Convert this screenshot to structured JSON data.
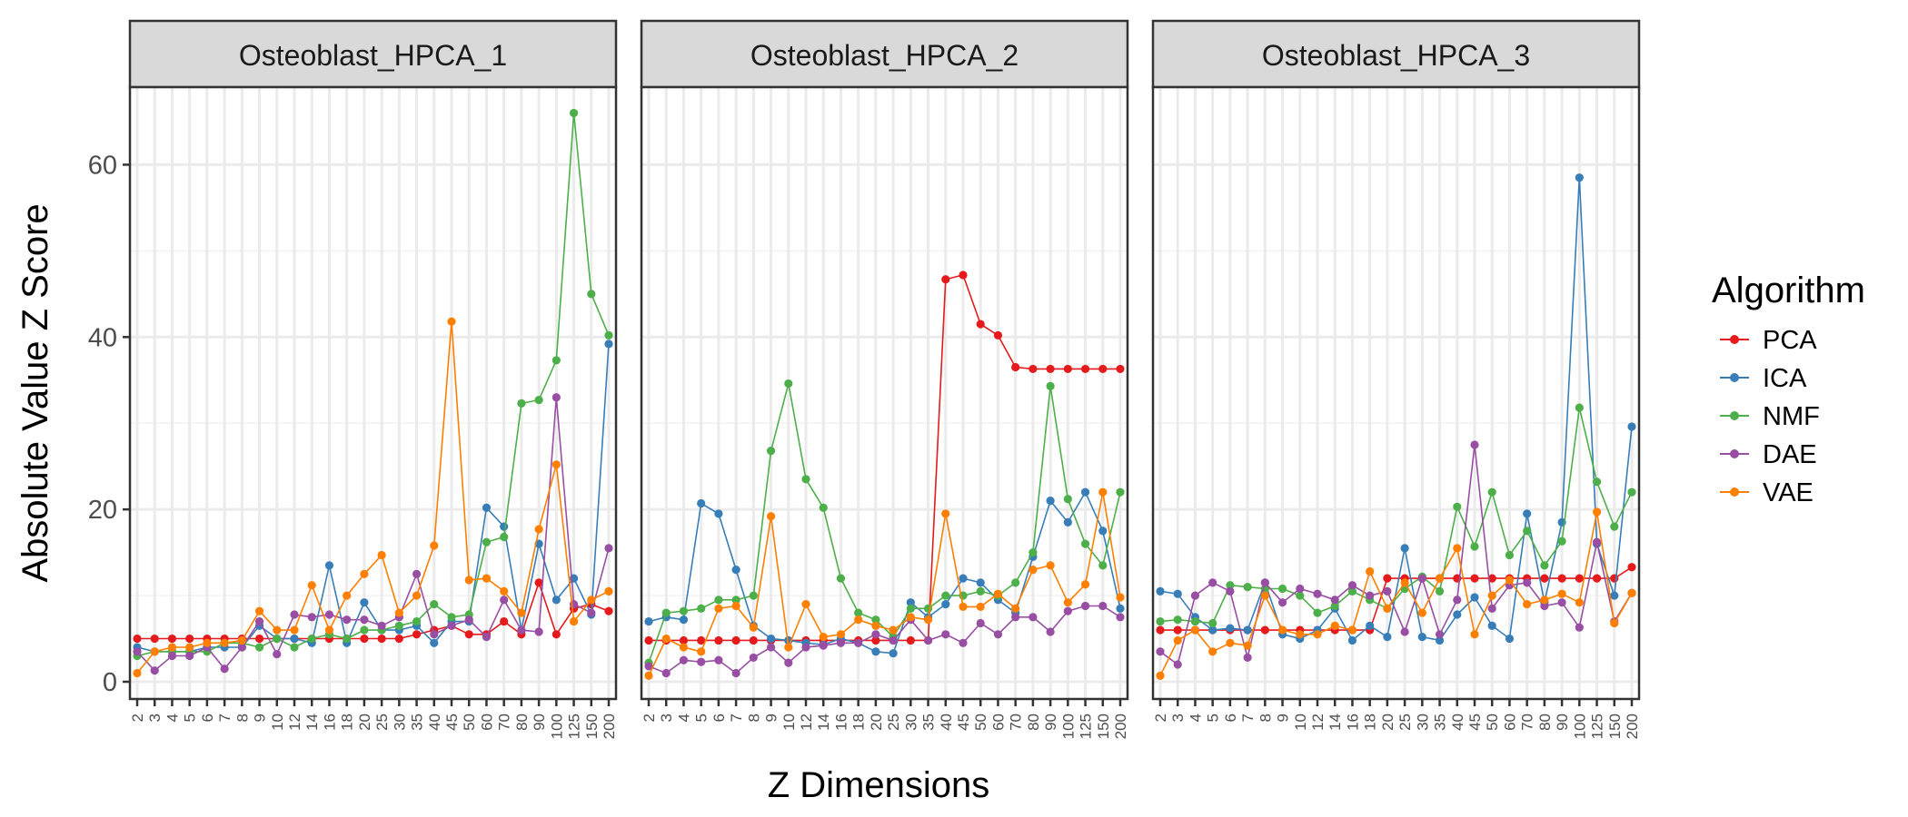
{
  "chart_data": {
    "type": "line",
    "ylabel": "Absolute Value Z Score",
    "xlabel": "Z Dimensions",
    "ylim": [
      -2,
      69
    ],
    "yticks": [
      0,
      20,
      40,
      60
    ],
    "legend": {
      "title": "Algorithm",
      "placement": "right"
    },
    "categories": [
      "2",
      "3",
      "4",
      "5",
      "6",
      "7",
      "8",
      "9",
      "10",
      "12",
      "14",
      "16",
      "18",
      "20",
      "25",
      "30",
      "35",
      "40",
      "45",
      "50",
      "60",
      "70",
      "80",
      "90",
      "100",
      "125",
      "150",
      "200"
    ],
    "colors": {
      "PCA": "#e41a1c",
      "ICA": "#377eb8",
      "NMF": "#4daf4a",
      "DAE": "#984ea3",
      "VAE": "#ff7f00"
    },
    "panels": [
      {
        "title": "Osteoblast_HPCA_1",
        "series": [
          {
            "name": "PCA",
            "values": [
              5,
              5,
              5,
              5,
              5,
              5,
              5,
              5,
              5,
              5,
              5,
              5,
              5,
              5,
              5,
              5,
              5.5,
              6,
              6.5,
              5.5,
              5.5,
              7,
              5.5,
              11.5,
              5.5,
              8.5,
              9,
              8.2
            ]
          },
          {
            "name": "ICA",
            "values": [
              4,
              3.5,
              3.5,
              3.5,
              4,
              4,
              4,
              6.5,
              5,
              5,
              4.5,
              13.5,
              4.5,
              9.2,
              6,
              6,
              6.5,
              4.5,
              7,
              7,
              20.2,
              18,
              6,
              16,
              9.5,
              12,
              7.8,
              39.2
            ]
          },
          {
            "name": "NMF",
            "values": [
              3,
              3.5,
              3.5,
              3.5,
              3.5,
              4.5,
              4.5,
              4,
              5,
              4,
              5,
              5.5,
              5,
              6,
              6,
              6.5,
              7,
              9,
              7.5,
              7.8,
              16.2,
              16.8,
              32.3,
              32.7,
              37.3,
              66,
              45,
              40.2
            ]
          },
          {
            "name": "DAE",
            "values": [
              3.5,
              1.3,
              3,
              3,
              4,
              1.5,
              4,
              7,
              3.2,
              7.8,
              7.5,
              7.8,
              7.2,
              7.2,
              6.5,
              7.5,
              12.5,
              5.5,
              6.5,
              7.2,
              5.2,
              9.5,
              6,
              5.8,
              33,
              9,
              8,
              15.5
            ]
          },
          {
            "name": "VAE",
            "values": [
              1,
              3.5,
              4,
              4,
              4.5,
              4.5,
              4.8,
              8.2,
              6,
              6,
              11.2,
              6,
              10,
              12.5,
              14.7,
              8,
              10,
              15.8,
              41.8,
              11.8,
              12,
              10.5,
              8,
              17.7,
              25.2,
              7,
              9.5,
              10.5
            ]
          }
        ]
      },
      {
        "title": "Osteoblast_HPCA_2",
        "series": [
          {
            "name": "PCA",
            "values": [
              4.8,
              4.8,
              4.8,
              4.8,
              4.8,
              4.8,
              4.8,
              4.8,
              4.8,
              4.8,
              4.8,
              4.8,
              4.8,
              4.8,
              4.8,
              4.8,
              4.8,
              46.7,
              47.2,
              41.5,
              40.2,
              36.5,
              36.3,
              36.3,
              36.3,
              36.3,
              36.3,
              36.3
            ]
          },
          {
            "name": "ICA",
            "values": [
              7,
              7.5,
              7.2,
              20.7,
              19.5,
              13,
              6.5,
              5,
              4.8,
              4.5,
              4.3,
              5,
              4.5,
              3.5,
              3.3,
              9.2,
              7.5,
              9,
              12,
              11.5,
              9.5,
              8,
              14.5,
              21,
              18.5,
              22,
              17.5,
              8.5
            ]
          },
          {
            "name": "NMF",
            "values": [
              2.2,
              8,
              8.2,
              8.5,
              9.5,
              9.5,
              10,
              26.8,
              34.6,
              23.5,
              20.2,
              12,
              8,
              7.2,
              5.2,
              8.5,
              8.5,
              10,
              10,
              10.5,
              10,
              11.5,
              15,
              34.3,
              21.2,
              16,
              13.5,
              22
            ]
          },
          {
            "name": "DAE",
            "values": [
              1.8,
              1,
              2.5,
              2.3,
              2.5,
              1,
              2.8,
              4,
              2.2,
              4,
              4.2,
              4.5,
              4.5,
              5.5,
              4.8,
              7.2,
              4.8,
              5.5,
              4.5,
              6.8,
              5.5,
              7.5,
              7.5,
              5.8,
              8.2,
              8.8,
              8.8,
              7.5
            ]
          },
          {
            "name": "VAE",
            "values": [
              0.7,
              5,
              4,
              3.5,
              8.5,
              8.8,
              6.3,
              19.2,
              4,
              9,
              5.2,
              5.5,
              7.2,
              6.5,
              6,
              7.5,
              7.2,
              19.5,
              8.7,
              8.7,
              10.2,
              8.5,
              13,
              13.5,
              9.2,
              11.3,
              22,
              9.8
            ]
          }
        ]
      },
      {
        "title": "Osteoblast_HPCA_3",
        "series": [
          {
            "name": "PCA",
            "values": [
              6,
              6,
              6,
              6,
              6,
              6,
              6,
              6,
              6,
              6,
              6,
              6,
              6,
              12,
              12,
              12,
              12,
              12,
              12,
              12,
              12,
              12,
              12,
              12,
              12,
              12,
              12,
              13.3
            ]
          },
          {
            "name": "ICA",
            "values": [
              10.5,
              10.2,
              7.5,
              6,
              6.2,
              6,
              11.5,
              5.5,
              5,
              6,
              8.5,
              4.8,
              6.5,
              5.2,
              15.5,
              5.2,
              4.8,
              7.8,
              9.8,
              6.5,
              5,
              19.5,
              9.2,
              18.5,
              58.5,
              16,
              10,
              29.6
            ]
          },
          {
            "name": "NMF",
            "values": [
              7,
              7.2,
              7,
              6.8,
              11.2,
              11,
              10.8,
              10.8,
              10,
              8,
              8.8,
              10.5,
              9.5,
              8.5,
              10.8,
              12.2,
              10.5,
              20.3,
              15.7,
              22,
              14.7,
              17.5,
              13.5,
              16.3,
              31.8,
              23.2,
              18,
              22
            ]
          },
          {
            "name": "DAE",
            "values": [
              3.5,
              2,
              10,
              11.5,
              10.5,
              2.8,
              11.5,
              9.2,
              10.8,
              10.2,
              9.5,
              11.2,
              10,
              10.5,
              5.8,
              12,
              5.5,
              9.5,
              27.5,
              8.5,
              11.2,
              11.5,
              8.8,
              9.2,
              6.3,
              16.2,
              7,
              10.3
            ]
          },
          {
            "name": "VAE",
            "values": [
              0.7,
              4.8,
              6,
              3.5,
              4.5,
              4.2,
              10,
              6,
              5.5,
              5.5,
              6.5,
              6,
              12.8,
              8.5,
              11.5,
              8,
              12,
              15.5,
              5.5,
              10,
              11.8,
              9,
              9.5,
              10.2,
              9.2,
              19.7,
              6.8,
              10.3
            ]
          }
        ]
      }
    ]
  }
}
